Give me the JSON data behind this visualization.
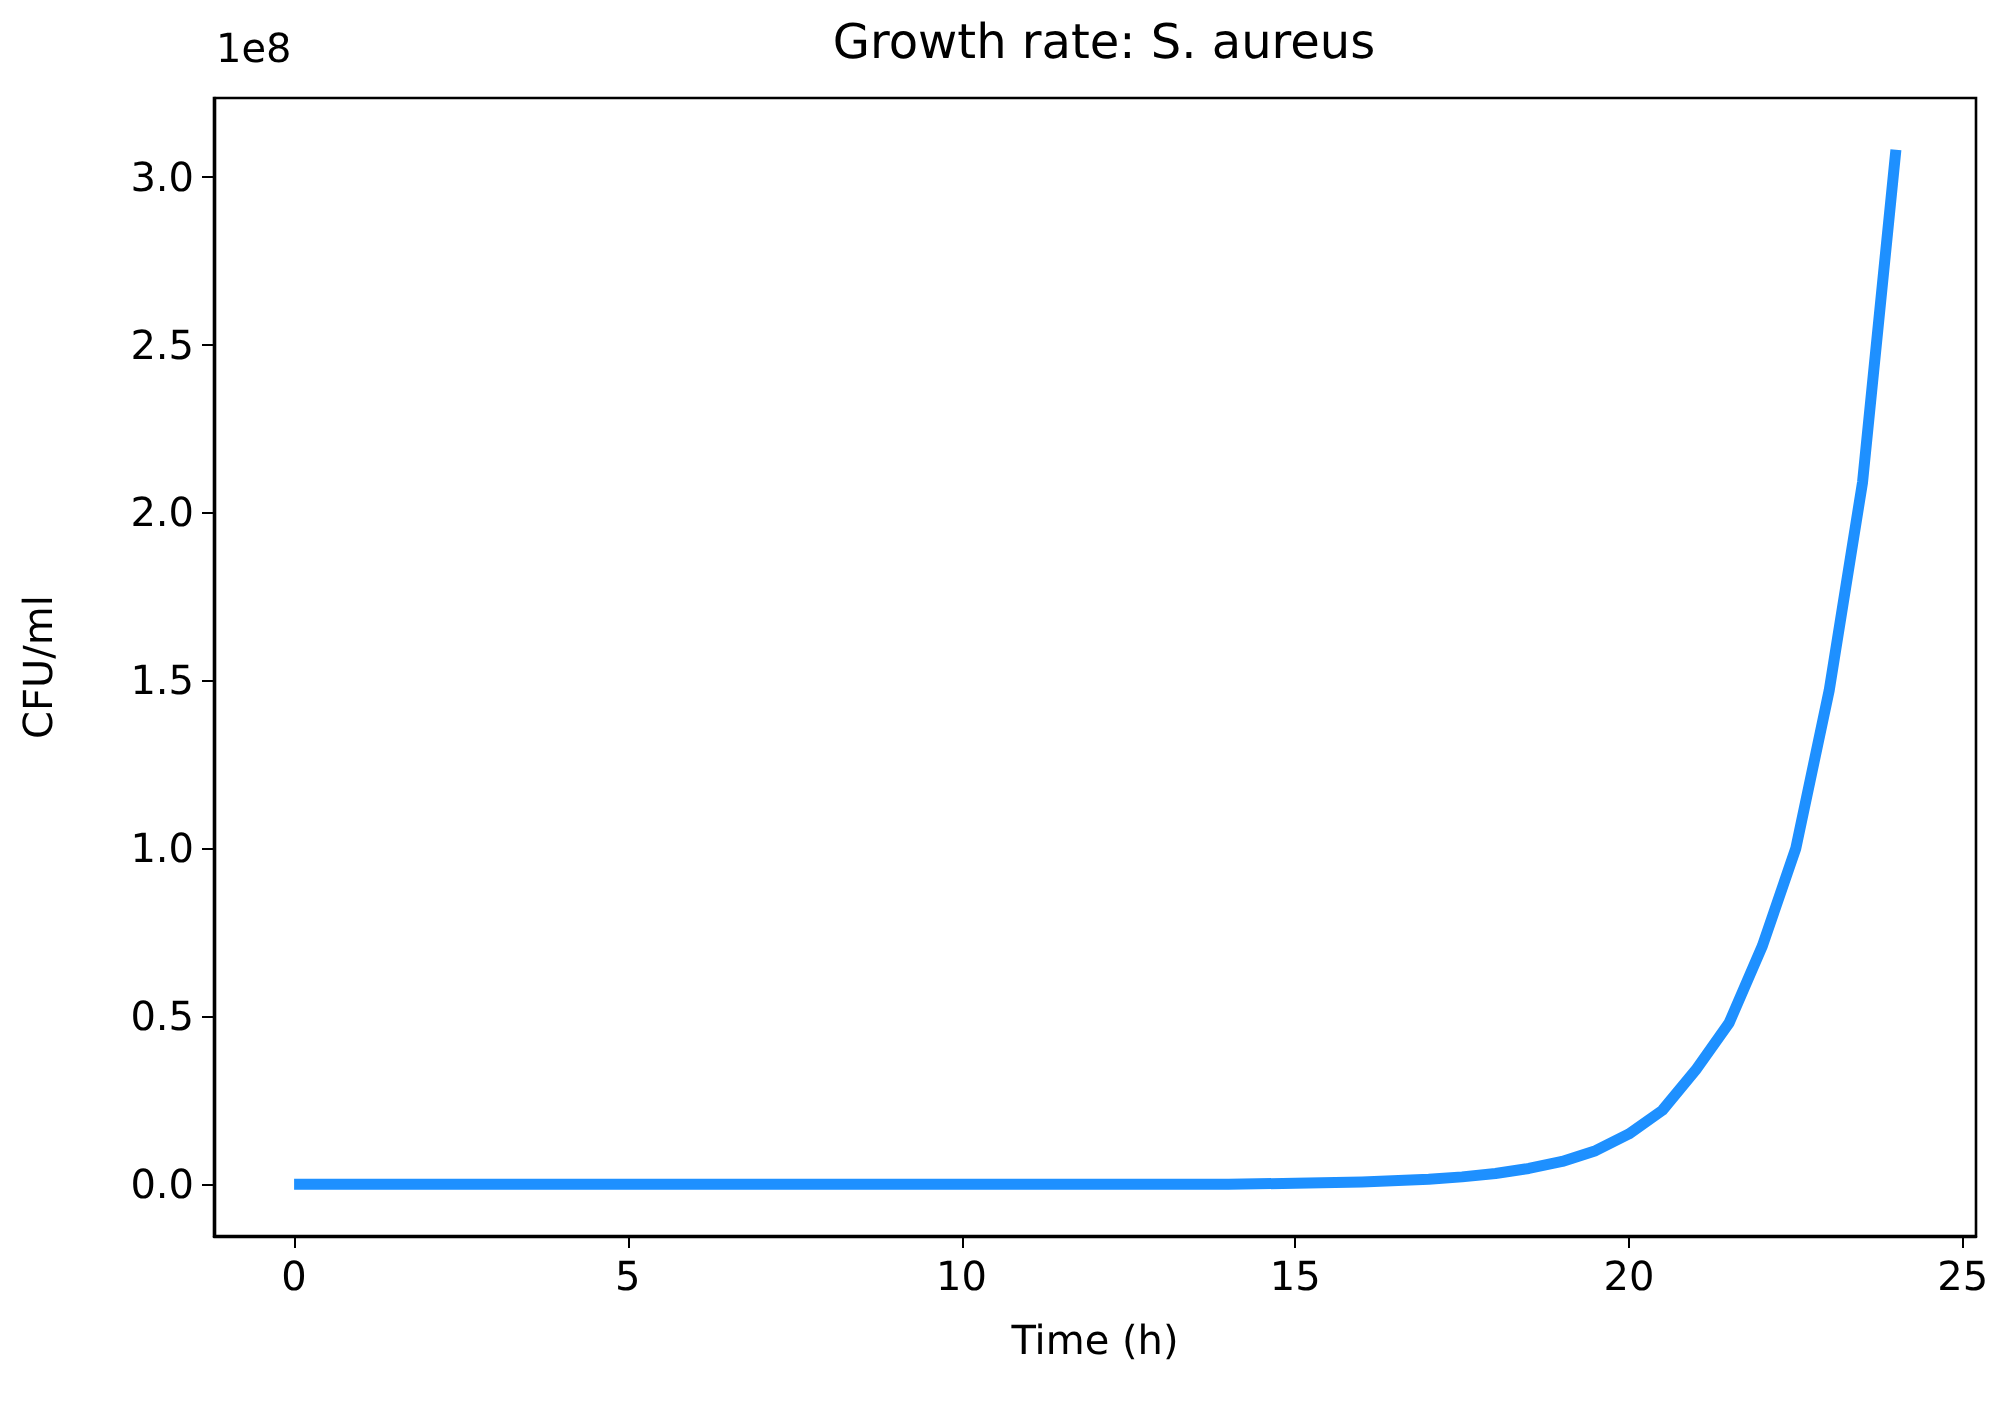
{
  "chart_data": {
    "type": "line",
    "title": "Growth rate: S. aureus",
    "xlabel": "Time (h)",
    "ylabel": "CFU/ml",
    "annotations": [
      "1e8"
    ],
    "x": [
      0,
      1,
      2,
      3,
      4,
      5,
      6,
      7,
      8,
      9,
      10,
      11,
      12,
      13,
      14,
      15,
      16,
      17,
      17.5,
      18,
      18.5,
      19,
      19.5,
      20,
      20.5,
      21,
      21.5,
      22,
      22.5,
      23,
      23.5,
      24
    ],
    "series": [
      {
        "color": "#1e90ff",
        "values": [
          0,
          0,
          0,
          0,
          0,
          0,
          0,
          0,
          0,
          0,
          0,
          0,
          0,
          0,
          0,
          0.003,
          0.007,
          0.015,
          0.022,
          0.032,
          0.047,
          0.068,
          0.1,
          0.15,
          0.22,
          0.34,
          0.48,
          0.71,
          1.0,
          1.47,
          2.09,
          3.08
        ]
      }
    ],
    "xlim": [
      -1.2,
      25.2
    ],
    "xticks": [
      0,
      5,
      10,
      15,
      20,
      25
    ],
    "ylim": [
      -0.154,
      3.234
    ],
    "yticks": [
      {
        "value": 0,
        "label": "0.0"
      },
      {
        "value": 0.5,
        "label": "0.5"
      },
      {
        "value": 1,
        "label": "1.0"
      },
      {
        "value": 1.5,
        "label": "1.5"
      },
      {
        "value": 2,
        "label": "2.0"
      },
      {
        "value": 2.5,
        "label": "2.5"
      },
      {
        "value": 3,
        "label": "3.0"
      }
    ],
    "grid": false,
    "marker": "none",
    "line_style": "solid"
  }
}
